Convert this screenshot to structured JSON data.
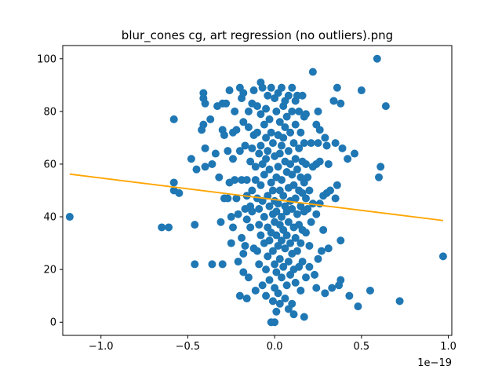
{
  "chart_data": {
    "type": "scatter",
    "title": "blur_cones cg, art regression (no outliers).png",
    "xlabel": "",
    "ylabel": "",
    "x_offset_label": "1e−19",
    "x_scale": 1e-19,
    "xlim": [
      -1.22e-19,
      1.02e-19
    ],
    "ylim": [
      -5,
      105
    ],
    "x_ticks": [
      -1e-19,
      -5e-20,
      0,
      5e-20,
      1e-19
    ],
    "x_tick_labels": [
      "−1.0",
      "−0.5",
      "0.0",
      "0.5",
      "1.0"
    ],
    "y_ticks": [
      0,
      20,
      40,
      60,
      80,
      100
    ],
    "y_tick_labels": [
      "0",
      "20",
      "40",
      "60",
      "80",
      "100"
    ],
    "point_color": "#1f77b4",
    "line_color": "#ffa500",
    "regression_line": {
      "x": [
        -1.18e-19,
        9.7e-20
      ],
      "y": [
        56.2,
        38.6
      ]
    },
    "points": [
      [
        -1.18e-19,
        40
      ],
      [
        -6.5e-20,
        36
      ],
      [
        -6.1e-20,
        36
      ],
      [
        -5.8e-20,
        77
      ],
      [
        -5.8e-20,
        53
      ],
      [
        -5.8e-20,
        50
      ],
      [
        -5.5e-20,
        49
      ],
      [
        -4.8e-20,
        62
      ],
      [
        -4.6e-20,
        37
      ],
      [
        -4.6e-20,
        22
      ],
      [
        -4.5e-20,
        58
      ],
      [
        -4.2e-20,
        73
      ],
      [
        -4.1e-20,
        75
      ],
      [
        -4e-20,
        66
      ],
      [
        -4e-20,
        59
      ],
      [
        -4.1e-20,
        87
      ],
      [
        -4.1e-20,
        85
      ],
      [
        -4e-20,
        83
      ],
      [
        -3.7e-20,
        77
      ],
      [
        -3.6e-20,
        60
      ],
      [
        -3.6e-20,
        22
      ],
      [
        -3.4e-20,
        64
      ],
      [
        -3.3e-20,
        82
      ],
      [
        -3.2e-20,
        55
      ],
      [
        -3.1e-20,
        38
      ],
      [
        -3e-20,
        83
      ],
      [
        -3e-20,
        73
      ],
      [
        -3e-20,
        22
      ],
      [
        -2.9e-20,
        71
      ],
      [
        -2.9e-20,
        47
      ],
      [
        -2.8e-20,
        83
      ],
      [
        -2.7e-20,
        47
      ],
      [
        -2.7e-20,
        65
      ],
      [
        -2.6e-20,
        88
      ],
      [
        -2.6e-20,
        53
      ],
      [
        -2.5e-20,
        40
      ],
      [
        -2.5e-20,
        30
      ],
      [
        -2.4e-20,
        62
      ],
      [
        -2.4e-20,
        72
      ],
      [
        -2.4e-20,
        36
      ],
      [
        -2.3e-20,
        54
      ],
      [
        -2.3e-20,
        80
      ],
      [
        -2.2e-20,
        73
      ],
      [
        -2.2e-20,
        47
      ],
      [
        -2.1e-20,
        41
      ],
      [
        -2.1e-20,
        23
      ],
      [
        -2e-20,
        89
      ],
      [
        -2e-20,
        10
      ],
      [
        -2e-20,
        65
      ],
      [
        -1.9e-20,
        85
      ],
      [
        -1.9e-20,
        54
      ],
      [
        -1.9e-20,
        32
      ],
      [
        -1.8e-20,
        87
      ],
      [
        -1.8e-20,
        76
      ],
      [
        -1.8e-20,
        19
      ],
      [
        -1.8e-20,
        26
      ],
      [
        -1.7e-20,
        67
      ],
      [
        -1.7e-20,
        43
      ],
      [
        -1.7e-20,
        29
      ],
      [
        -1.6e-20,
        9
      ],
      [
        -1.6e-20,
        48
      ],
      [
        -1.6e-20,
        54
      ],
      [
        -1.6e-20,
        39
      ],
      [
        -1.5e-20,
        74
      ],
      [
        -1.5e-20,
        17
      ],
      [
        -1.5e-20,
        80
      ],
      [
        -1.4e-20,
        61
      ],
      [
        -1.4e-20,
        36
      ],
      [
        -1.4e-20,
        44
      ],
      [
        -1.3e-20,
        83
      ],
      [
        -1.3e-20,
        66
      ],
      [
        -1.3e-20,
        50
      ],
      [
        -1.3e-20,
        42
      ],
      [
        -1.2e-20,
        71
      ],
      [
        -1.2e-20,
        28
      ],
      [
        -1.2e-20,
        88
      ],
      [
        -1.1e-20,
        59
      ],
      [
        -1.1e-20,
        54
      ],
      [
        -1.1e-20,
        12
      ],
      [
        -1e-20,
        82
      ],
      [
        -1e-20,
        72
      ],
      [
        -1e-20,
        47
      ],
      [
        -1e-20,
        27
      ],
      [
        -9e-21,
        64
      ],
      [
        -9e-21,
        43
      ],
      [
        -9e-21,
        37
      ],
      [
        -9e-21,
        22
      ],
      [
        -8e-21,
        91
      ],
      [
        -8e-21,
        79
      ],
      [
        -8e-21,
        67
      ],
      [
        -8e-21,
        52
      ],
      [
        -8e-21,
        33
      ],
      [
        -7e-21,
        60
      ],
      [
        -7e-21,
        46
      ],
      [
        -7e-21,
        14
      ],
      [
        -7e-21,
        89
      ],
      [
        -6e-21,
        75
      ],
      [
        -6e-21,
        56
      ],
      [
        -6e-21,
        40
      ],
      [
        -6e-21,
        30
      ],
      [
        -5e-21,
        81
      ],
      [
        -5e-21,
        70
      ],
      [
        -5e-21,
        62
      ],
      [
        -5e-21,
        20
      ],
      [
        -5e-21,
        10
      ],
      [
        -4e-21,
        86
      ],
      [
        -4e-21,
        65
      ],
      [
        -4e-21,
        48
      ],
      [
        -4e-21,
        36
      ],
      [
        -4e-21,
        25
      ],
      [
        -3e-21,
        77
      ],
      [
        -3e-21,
        58
      ],
      [
        -3e-21,
        44
      ],
      [
        -3e-21,
        31
      ],
      [
        -3e-21,
        16
      ],
      [
        -2e-21,
        89
      ],
      [
        -2e-21,
        72
      ],
      [
        -2e-21,
        53
      ],
      [
        -2e-21,
        34
      ],
      [
        -2e-21,
        0
      ],
      [
        -1e-21,
        68
      ],
      [
        -1e-21,
        50
      ],
      [
        -1e-21,
        41
      ],
      [
        -1e-21,
        27
      ],
      [
        -1e-21,
        8
      ],
      [
        0,
        85
      ],
      [
        0,
        63
      ],
      [
        0,
        46
      ],
      [
        0,
        38
      ],
      [
        0,
        22
      ],
      [
        0,
        13
      ],
      [
        0,
        0
      ],
      [
        1e-21,
        80
      ],
      [
        1e-21,
        55
      ],
      [
        1e-21,
        42
      ],
      [
        1e-21,
        33
      ],
      [
        1e-21,
        19
      ],
      [
        1e-21,
        4
      ],
      [
        2e-21,
        87
      ],
      [
        2e-21,
        71
      ],
      [
        2e-21,
        59
      ],
      [
        2e-21,
        45
      ],
      [
        2e-21,
        29
      ],
      [
        2e-21,
        11
      ],
      [
        3e-21,
        76
      ],
      [
        3e-21,
        64
      ],
      [
        3e-21,
        50
      ],
      [
        3e-21,
        37
      ],
      [
        3e-21,
        24
      ],
      [
        3e-21,
        7
      ],
      [
        4e-21,
        89
      ],
      [
        4e-21,
        67
      ],
      [
        4e-21,
        54
      ],
      [
        4e-21,
        40
      ],
      [
        4e-21,
        31
      ],
      [
        4e-21,
        17
      ],
      [
        5e-21,
        82
      ],
      [
        5e-21,
        70
      ],
      [
        5e-21,
        48
      ],
      [
        5e-21,
        35
      ],
      [
        5e-21,
        21
      ],
      [
        6e-21,
        84
      ],
      [
        6e-21,
        74
      ],
      [
        6e-21,
        61
      ],
      [
        6e-21,
        44
      ],
      [
        6e-21,
        28
      ],
      [
        6e-21,
        9
      ],
      [
        7e-21,
        78
      ],
      [
        7e-21,
        57
      ],
      [
        7e-21,
        42
      ],
      [
        7e-21,
        33
      ],
      [
        7e-21,
        14
      ],
      [
        8e-21,
        86
      ],
      [
        8e-21,
        65
      ],
      [
        8e-21,
        51
      ],
      [
        8e-21,
        38
      ],
      [
        8e-21,
        23
      ],
      [
        8e-21,
        5
      ],
      [
        9e-21,
        72
      ],
      [
        9e-21,
        60
      ],
      [
        9e-21,
        46
      ],
      [
        9e-21,
        30
      ],
      [
        9e-21,
        18
      ],
      [
        1e-20,
        89
      ],
      [
        1e-20,
        80
      ],
      [
        1e-20,
        56
      ],
      [
        1e-20,
        43
      ],
      [
        1e-20,
        26
      ],
      [
        1e-20,
        7
      ],
      [
        1.1e-20,
        68
      ],
      [
        1.1e-20,
        52
      ],
      [
        1.1e-20,
        36
      ],
      [
        1.1e-20,
        20
      ],
      [
        1.1e-20,
        3
      ],
      [
        1.2e-20,
        84
      ],
      [
        1.2e-20,
        75
      ],
      [
        1.2e-20,
        62
      ],
      [
        1.2e-20,
        47
      ],
      [
        1.2e-20,
        32
      ],
      [
        1.2e-20,
        15
      ],
      [
        1.3e-20,
        86
      ],
      [
        1.3e-20,
        58
      ],
      [
        1.3e-20,
        41
      ],
      [
        1.3e-20,
        27
      ],
      [
        1.4e-20,
        80
      ],
      [
        1.4e-20,
        66
      ],
      [
        1.4e-20,
        50
      ],
      [
        1.4e-20,
        37
      ],
      [
        1.4e-20,
        21
      ],
      [
        1.5e-20,
        72
      ],
      [
        1.5e-20,
        55
      ],
      [
        1.5e-20,
        44
      ],
      [
        1.5e-20,
        30
      ],
      [
        1.5e-20,
        12
      ],
      [
        1.6e-20,
        86
      ],
      [
        1.6e-20,
        61
      ],
      [
        1.6e-20,
        49
      ],
      [
        1.6e-20,
        35
      ],
      [
        1.6e-20,
        23
      ],
      [
        1.7e-20,
        78
      ],
      [
        1.7e-20,
        68
      ],
      [
        1.7e-20,
        53
      ],
      [
        1.7e-20,
        42
      ],
      [
        1.7e-20,
        2
      ],
      [
        1.8e-20,
        79
      ],
      [
        1.8e-20,
        60
      ],
      [
        1.8e-20,
        47
      ],
      [
        1.8e-20,
        34
      ],
      [
        1.8e-20,
        17
      ],
      [
        1.9e-20,
        55
      ],
      [
        1.9e-20,
        43
      ],
      [
        2e-20,
        50
      ],
      [
        2e-20,
        29
      ],
      [
        2e-20,
        21
      ],
      [
        2.1e-20,
        68
      ],
      [
        2.1e-20,
        38
      ],
      [
        2.2e-20,
        95
      ],
      [
        2.2e-20,
        59
      ],
      [
        2.2e-20,
        45
      ],
      [
        2.3e-20,
        18
      ],
      [
        2.4e-20,
        75
      ],
      [
        2.4e-20,
        60
      ],
      [
        2.4e-20,
        41
      ],
      [
        2.4e-20,
        13
      ],
      [
        2.5e-20,
        80
      ],
      [
        2.5e-20,
        68
      ],
      [
        2.5e-20,
        24
      ],
      [
        2.6e-20,
        73
      ],
      [
        2.6e-20,
        61
      ],
      [
        2.6e-20,
        45
      ],
      [
        2.7e-20,
        27
      ],
      [
        2.8e-20,
        48
      ],
      [
        2.8e-20,
        35
      ],
      [
        2.9e-20,
        70
      ],
      [
        2.9e-20,
        11
      ],
      [
        3e-20,
        67
      ],
      [
        3e-20,
        49
      ],
      [
        3.1e-20,
        60
      ],
      [
        3.1e-20,
        28
      ],
      [
        3.2e-20,
        50
      ],
      [
        3.3e-20,
        13
      ],
      [
        3.4e-20,
        84
      ],
      [
        3.5e-20,
        68
      ],
      [
        3.5e-20,
        47
      ],
      [
        3.6e-20,
        89
      ],
      [
        3.6e-20,
        52
      ],
      [
        3.7e-20,
        14
      ],
      [
        3.8e-20,
        31
      ],
      [
        3.8e-20,
        83
      ],
      [
        3.8e-20,
        16
      ],
      [
        3.9e-20,
        66
      ],
      [
        4.2e-20,
        62
      ],
      [
        4.3e-20,
        10
      ],
      [
        4.6e-20,
        64
      ],
      [
        4.8e-20,
        6
      ],
      [
        5e-20,
        88
      ],
      [
        5.5e-20,
        12
      ],
      [
        5.9e-20,
        100
      ],
      [
        6e-20,
        55
      ],
      [
        6.1e-20,
        59
      ],
      [
        6.4e-20,
        82
      ],
      [
        7.2e-20,
        8
      ],
      [
        9.7e-20,
        25
      ]
    ]
  }
}
